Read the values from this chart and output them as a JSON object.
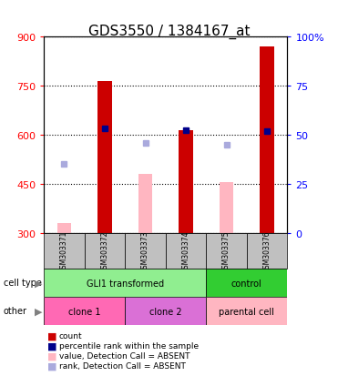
{
  "title": "GDS3550 / 1384167_at",
  "samples": [
    "GSM303371",
    "GSM303372",
    "GSM303373",
    "GSM303374",
    "GSM303375",
    "GSM303376"
  ],
  "count_values": [
    null,
    765,
    null,
    615,
    null,
    870
  ],
  "value_absent": [
    330,
    null,
    480,
    null,
    455,
    null
  ],
  "rank_absent": [
    510,
    null,
    575,
    null,
    570,
    null
  ],
  "percentile_rank": [
    null,
    620,
    null,
    615,
    null,
    610
  ],
  "ylim_left": [
    300,
    900
  ],
  "ylim_right": [
    0,
    100
  ],
  "yticks_left": [
    300,
    450,
    600,
    750,
    900
  ],
  "yticks_right": [
    0,
    25,
    50,
    75,
    100
  ],
  "ytick_right_labels": [
    "0",
    "25",
    "50",
    "75",
    "100%"
  ],
  "cell_type_labels": [
    {
      "label": "GLI1 transformed",
      "span": [
        0,
        4
      ],
      "color": "#90EE90"
    },
    {
      "label": "control",
      "span": [
        4,
        6
      ],
      "color": "#32CD32"
    }
  ],
  "other_labels": [
    {
      "label": "clone 1",
      "span": [
        0,
        2
      ],
      "color": "#FF69B4"
    },
    {
      "label": "clone 2",
      "span": [
        2,
        4
      ],
      "color": "#DA70D6"
    },
    {
      "label": "parental cell",
      "span": [
        4,
        6
      ],
      "color": "#FFB6C1"
    }
  ],
  "legend_items": [
    {
      "color": "#CC0000",
      "label": "count"
    },
    {
      "color": "#00008B",
      "label": "percentile rank within the sample"
    },
    {
      "color": "#FFB6C1",
      "label": "value, Detection Call = ABSENT"
    },
    {
      "color": "#AAAADD",
      "label": "rank, Detection Call = ABSENT"
    }
  ],
  "bar_width": 0.35,
  "count_color": "#CC0000",
  "percentile_color": "#00008B",
  "value_absent_color": "#FFB6C1",
  "rank_absent_color": "#AAAADD",
  "baseline": 300,
  "sample_box_color": "#C0C0C0",
  "title_fontsize": 11,
  "tick_fontsize": 8,
  "label_fontsize": 7
}
